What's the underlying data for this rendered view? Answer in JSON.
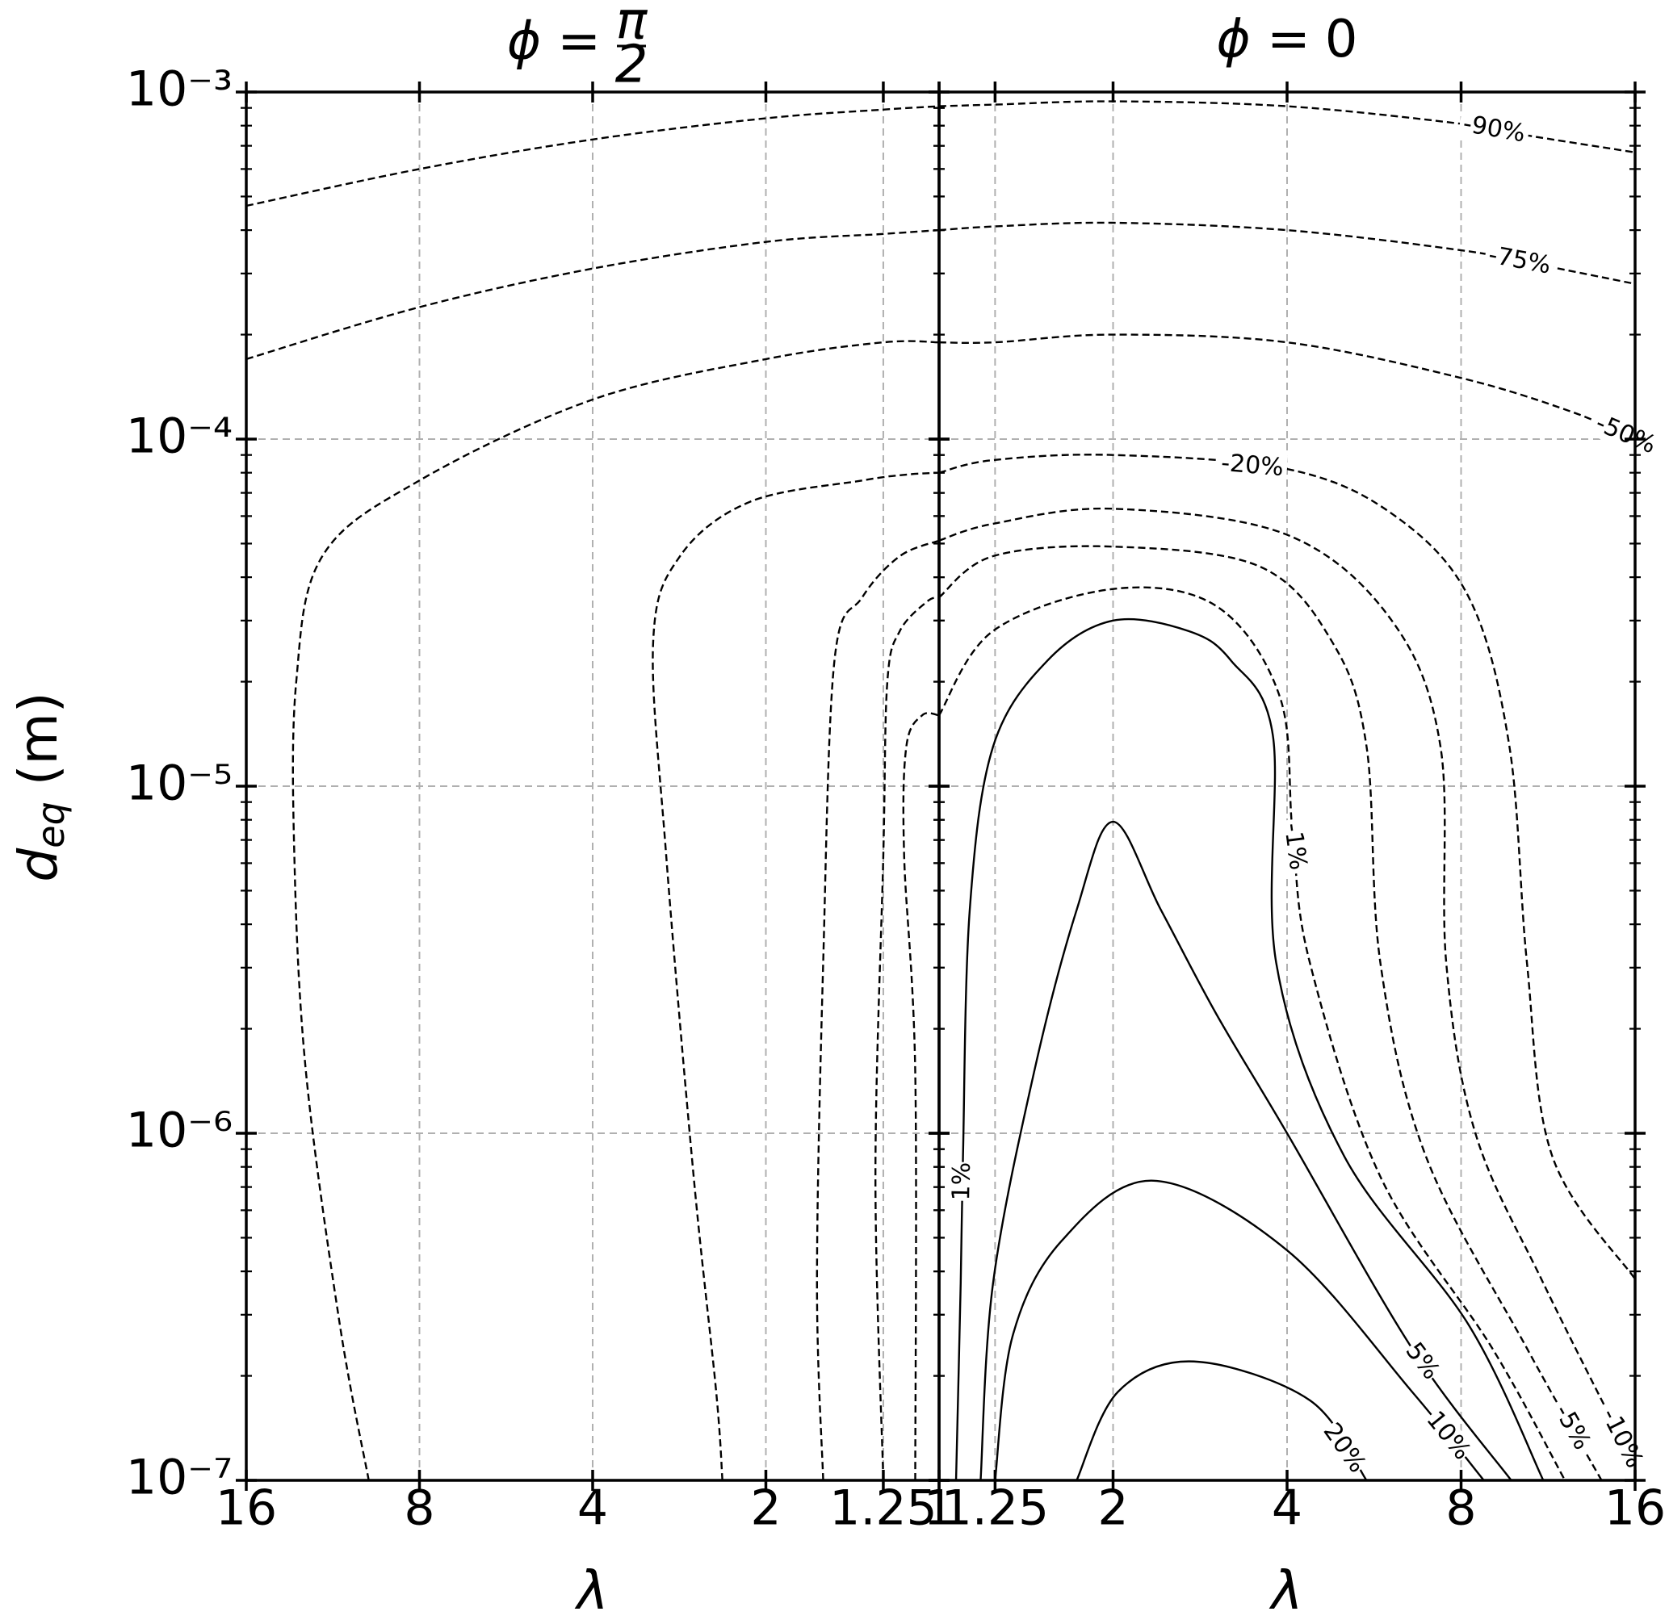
{
  "chart_data": {
    "type": "contour",
    "yscale": "log",
    "xscale": "log",
    "grid": true,
    "color": "#000000",
    "ylabel": {
      "symbol": "d",
      "subscript": "eq",
      "unit": "(m)"
    },
    "ylim": [
      1e-07,
      0.001
    ],
    "yticks": [
      {
        "value": 0.001,
        "label": "10⁻³"
      },
      {
        "value": 0.0001,
        "label": "10⁻⁴"
      },
      {
        "value": 1e-05,
        "label": "10⁻⁵"
      },
      {
        "value": 1e-06,
        "label": "10⁻⁶"
      },
      {
        "value": 1e-07,
        "label": "10⁻⁷"
      }
    ],
    "yminorticks": [
      2e-07,
      3e-07,
      4e-07,
      5e-07,
      6e-07,
      7e-07,
      8e-07,
      9e-07,
      2e-06,
      3e-06,
      4e-06,
      5e-06,
      6e-06,
      7e-06,
      8e-06,
      9e-06,
      2e-05,
      3e-05,
      4e-05,
      5e-05,
      6e-05,
      7e-05,
      8e-05,
      9e-05,
      0.0002,
      0.0003,
      0.0004,
      0.0005,
      0.0006,
      0.0007,
      0.0008,
      0.0009
    ],
    "panels": [
      {
        "title": {
          "lhs": "ϕ =",
          "numerator": "π",
          "denominator": "2"
        },
        "xlabel": "λ",
        "xlim": [
          16,
          1
        ],
        "xticks": [
          16,
          8,
          4,
          2,
          1.25,
          1
        ],
        "contours": [
          {
            "level": {
              "value": -90,
              "label": "-90%"
            },
            "x": [
              16,
              8,
              4,
              2,
              1.25,
              1
            ],
            "y": [
              0.00047,
              0.0006,
              0.00073,
              0.00084,
              0.00089,
              0.00091
            ]
          },
          {
            "level": {
              "value": -75,
              "label": "-75%"
            },
            "x": [
              16,
              8,
              4,
              2,
              1.25,
              1
            ],
            "y": [
              0.00017,
              0.00024,
              0.00031,
              0.00037,
              0.00039,
              0.0004
            ]
          },
          {
            "level": {
              "value": -50,
              "label": "-50%"
            },
            "x": [
              9.8,
              11.0,
              12.6,
              13.2,
              13.1,
              11.8,
              8,
              4,
              2,
              1.25,
              1
            ],
            "y": [
              1e-07,
              2.8e-07,
              1.5e-06,
              6.3e-06,
              2e-05,
              4.6e-05,
              7.6e-05,
              0.00013,
              0.00017,
              0.00019,
              0.00019
            ]
          },
          {
            "level": {
              "value": -20,
              "label": "-20%"
            },
            "x": [
              2.38,
              2.44,
              2.67,
              2.98,
              3.14,
              2.82,
              2.13,
              1.36,
              1.14,
              1
            ],
            "y": [
              1e-07,
              1.8e-07,
              7.5e-07,
              6.3e-06,
              2.6e-05,
              4.6e-05,
              6.6e-05,
              7.6e-05,
              7.9e-05,
              8e-05
            ]
          },
          {
            "level": {
              "value": -10,
              "label": "-10%"
            },
            "x": [
              1.59,
              1.63,
              1.59,
              1.52,
              1.36,
              1.17,
              1
            ],
            "y": [
              1e-07,
              3.7e-07,
              3.1e-06,
              2.3e-05,
              3.5e-05,
              4.6e-05,
              5.1e-05
            ]
          },
          {
            "level": {
              "value": -5,
              "label": "-5%"
            },
            "x": [
              1.25,
              1.29,
              1.25,
              1.23,
              1.17,
              1.05,
              1
            ],
            "y": [
              1e-07,
              7.5e-07,
              6.3e-06,
              2e-05,
              2.8e-05,
              3.4e-05,
              3.5e-05
            ]
          },
          {
            "level": {
              "value": -1,
              "label": "-1%"
            },
            "x": [
              1.1,
              1.1,
              1.15,
              1.14,
              1.07,
              1
            ],
            "y": [
              1e-07,
              1.5e-06,
              6.3e-06,
              1.3e-05,
              1.6e-05,
              1.6e-05
            ]
          }
        ]
      },
      {
        "title": {
          "lhs": "ϕ =",
          "rhs": "0"
        },
        "xlabel": "λ",
        "xlim": [
          1,
          16
        ],
        "xticks": [
          1,
          1.25,
          2,
          4,
          8,
          16
        ],
        "contours": [
          {
            "level": {
              "value": -90,
              "label": "-90%"
            },
            "x": [
              1,
              1.25,
              2,
              4,
              8,
              10.4,
              16
            ],
            "y": [
              0.00091,
              0.00092,
              0.00094,
              0.00091,
              0.00081,
              0.00075,
              0.00067
            ]
          },
          {
            "level": {
              "value": -75,
              "label": "-75%"
            },
            "x": [
              1,
              1.25,
              2,
              4,
              8,
              10.7,
              16
            ],
            "y": [
              0.0004,
              0.00041,
              0.00042,
              0.0004,
              0.00035,
              0.00032,
              0.00028
            ]
          },
          {
            "level": {
              "value": -50,
              "label": "-50%"
            },
            "x": [
              1,
              1.25,
              2,
              4,
              8,
              12.4,
              16
            ],
            "y": [
              0.00019,
              0.00019,
              0.0002,
              0.00019,
              0.00015,
              0.00012,
              0.0001
            ]
          },
          {
            "level": {
              "value": -20,
              "label": "-20%"
            },
            "x": [
              1,
              1.24,
              2,
              4,
              6.07,
              8.25,
              9.7,
              10.4,
              11.5,
              16
            ],
            "y": [
              8e-05,
              8.7e-05,
              9e-05,
              8.2e-05,
              6.1e-05,
              3.5e-05,
              1.3e-05,
              3.1e-06,
              8.6e-07,
              3.8e-07
            ]
          },
          {
            "level": {
              "value": -10,
              "label": "-10%"
            },
            "x": [
              1,
              1.24,
              2,
              4,
              6.07,
              7.37,
              7.54,
              8.47,
              11.1,
              16
            ],
            "y": [
              5.1e-05,
              5.7e-05,
              6.3e-05,
              5.3e-05,
              3e-05,
              1.3e-05,
              3.1e-06,
              1e-06,
              3.7e-07,
              1.1e-07
            ]
          },
          {
            "level": {
              "value": -5,
              "label": "-5%"
            },
            "x": [
              1,
              1.24,
              2,
              3.58,
              4.79,
              5.49,
              5.8,
              6.95,
              10.4,
              14.0
            ],
            "y": [
              3.5e-05,
              4.6e-05,
              4.9e-05,
              4.3e-05,
              2.6e-05,
              1.3e-05,
              3.1e-06,
              8.6e-07,
              2.4e-07,
              1e-07
            ]
          },
          {
            "level": {
              "value": -1,
              "label": "-1%"
            },
            "x": [
              1,
              1.24,
              2,
              3.02,
              3.89,
              4.09,
              4.38,
              5.8,
              9.06,
              12.1
            ],
            "y": [
              1.6e-05,
              2.8e-05,
              3.7e-05,
              3.3e-05,
              1.8e-05,
              7.3e-06,
              3.1e-06,
              7.5e-07,
              2.4e-07,
              1e-07
            ]
          },
          {
            "level": {
              "value": 1,
              "label": "1%"
            },
            "x": [
              1.07,
              1.09,
              1.1,
              1.13,
              1.24,
              1.54,
              2,
              2.7,
              3.2,
              3.78,
              3.83,
              5.02,
              8.25,
              11.1
            ],
            "y": [
              1e-07,
              3.7e-07,
              8.6e-07,
              4.4e-06,
              1.3e-05,
              2.3e-05,
              3e-05,
              2.8e-05,
              2.3e-05,
              1.4e-05,
              3.1e-06,
              8.6e-07,
              2.8e-07,
              1e-07
            ]
          },
          {
            "level": {
              "value": 5,
              "label": "5%"
            },
            "x": [
              1.18,
              1.24,
              1.46,
              1.73,
              2,
              2.42,
              3.02,
              4,
              6.58,
              9.77
            ],
            "y": [
              1e-07,
              3.7e-07,
              1.5e-06,
              4.4e-06,
              7.9e-06,
              4.4e-06,
              2.2e-06,
              1e-06,
              2.4e-07,
              1e-07
            ]
          },
          {
            "level": {
              "value": 10,
              "label": "10%"
            },
            "x": [
              1.25,
              1.34,
              1.63,
              2.35,
              4,
              6.58,
              8.76
            ],
            "y": [
              1e-07,
              2.6e-07,
              4.9e-07,
              7.3e-07,
              4.6e-07,
              1.8e-07,
              1e-07
            ]
          },
          {
            "level": {
              "value": 20,
              "label": "20%"
            },
            "x": [
              1.73,
              2.04,
              2.76,
              4.38,
              5.49
            ],
            "y": [
              1e-07,
              1.8e-07,
              2.2e-07,
              1.7e-07,
              1e-07
            ]
          }
        ]
      }
    ]
  }
}
